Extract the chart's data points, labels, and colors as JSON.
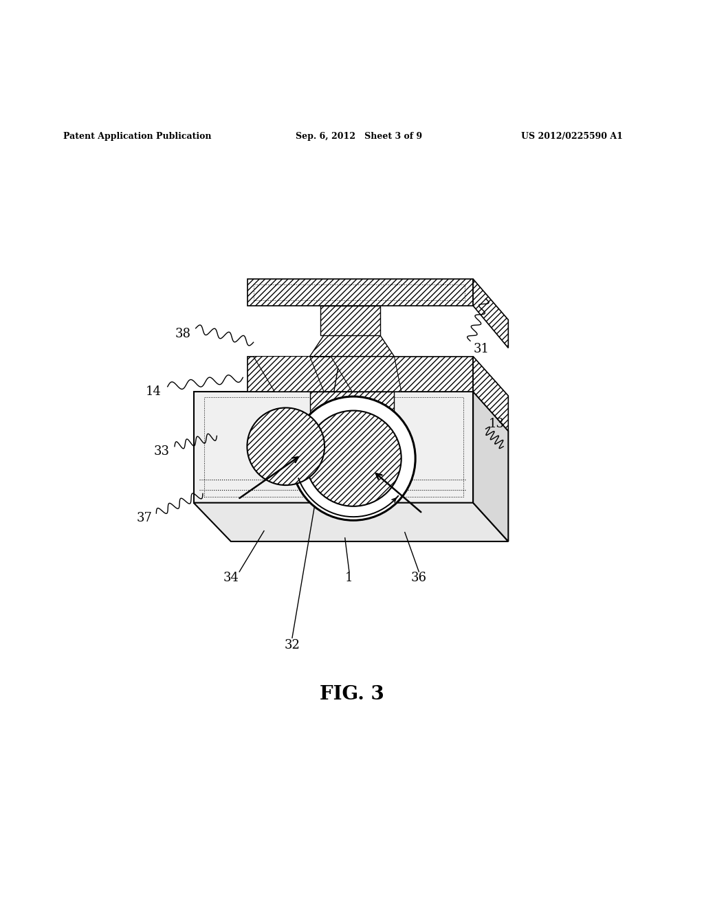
{
  "bg_color": "#ffffff",
  "header_left": "Patent Application Publication",
  "header_center": "Sep. 6, 2012   Sheet 3 of 9",
  "header_right": "US 2012/0225590 A1",
  "figure_label": "FIG. 3",
  "line_color": "#000000",
  "label_fontsize": 13,
  "header_fontsize": 9,
  "fig_label_fontsize": 20
}
